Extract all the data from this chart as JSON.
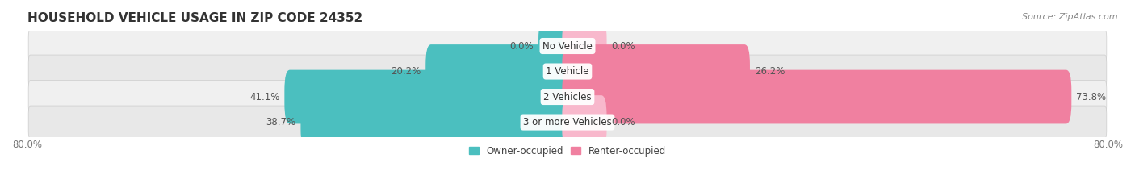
{
  "title": "HOUSEHOLD VEHICLE USAGE IN ZIP CODE 24352",
  "source": "Source: ZipAtlas.com",
  "categories": [
    "No Vehicle",
    "1 Vehicle",
    "2 Vehicles",
    "3 or more Vehicles"
  ],
  "owner_values": [
    0.0,
    20.2,
    41.1,
    38.7
  ],
  "renter_values": [
    0.0,
    26.2,
    73.8,
    0.0
  ],
  "renter_stub_values": [
    2.0,
    0,
    0,
    4.0
  ],
  "owner_color": "#4BBFBF",
  "renter_color": "#F080A0",
  "renter_stub_color": "#F8B8CC",
  "row_bg_color_odd": "#F0F0F0",
  "row_bg_color_even": "#E8E8E8",
  "x_min": -80.0,
  "x_max": 80.0,
  "legend_owner": "Owner-occupied",
  "legend_renter": "Renter-occupied",
  "title_fontsize": 11,
  "source_fontsize": 8,
  "label_fontsize": 8.5,
  "category_fontsize": 8.5,
  "tick_fontsize": 8.5,
  "bar_height": 0.52
}
